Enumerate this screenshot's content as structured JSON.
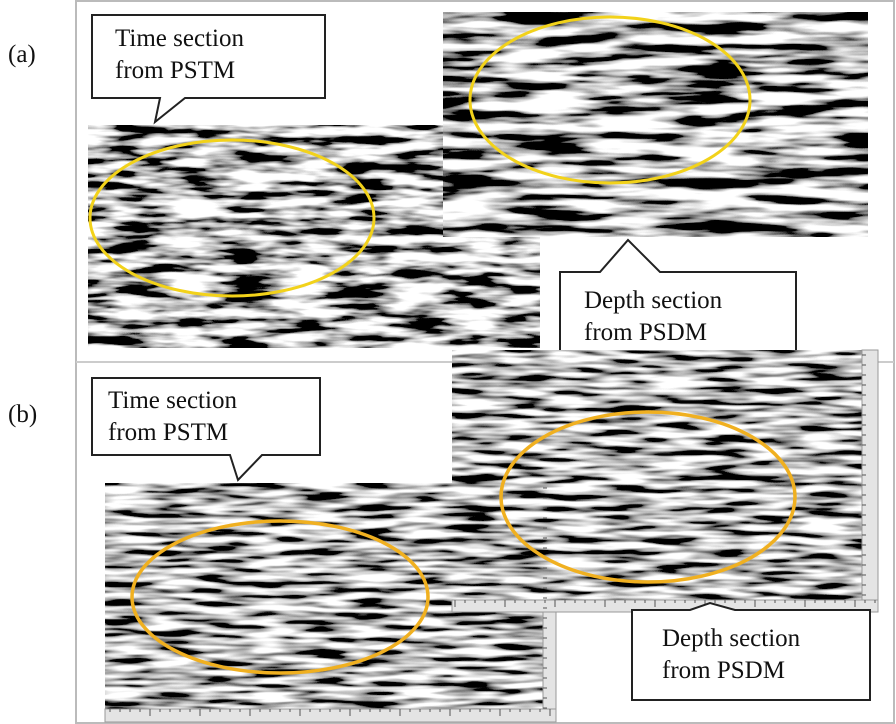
{
  "panels": [
    {
      "label": "(a)",
      "time_callout": [
        "Time section",
        "from PSTM"
      ],
      "depth_callout": [
        "Depth section",
        "from PSDM"
      ]
    },
    {
      "label": "(b)",
      "time_callout": [
        "Time section",
        "from PSTM"
      ],
      "depth_callout": [
        "Depth section",
        "from PSDM"
      ]
    }
  ]
}
